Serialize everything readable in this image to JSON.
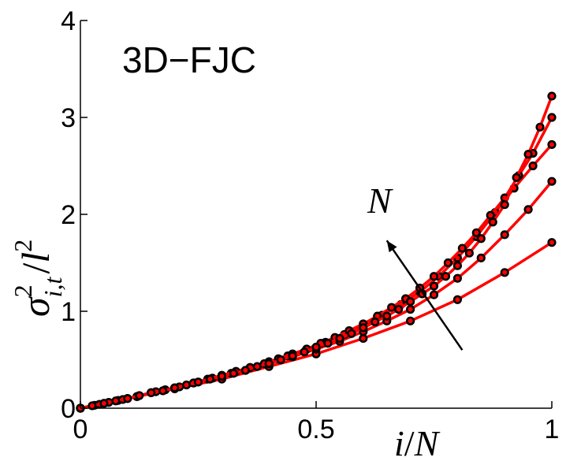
{
  "chart_data": {
    "type": "line",
    "title": "3D−FJC",
    "xlabel": {
      "numerator": "i",
      "slash": "/",
      "denominator": "N"
    },
    "ylabel": {
      "base": "σ",
      "sup": "2",
      "sub": "i,t",
      "slash": "/",
      "l": "l",
      "lsup": "2"
    },
    "annotation": "N",
    "xlim": [
      0,
      1
    ],
    "ylim": [
      0,
      4
    ],
    "xticks": [
      0,
      0.5,
      1
    ],
    "xtick_labels": [
      "0",
      "0.5",
      "1"
    ],
    "yticks": [
      0,
      1,
      2,
      3,
      4
    ],
    "ytick_labels": [
      "0",
      "1",
      "2",
      "3",
      "4"
    ],
    "line_color": "#ff0000",
    "marker_color": "#000000",
    "grid": false,
    "arrow": {
      "from": [
        0.81,
        0.6
      ],
      "to": [
        0.65,
        1.73
      ]
    },
    "series": [
      {
        "x": [
          0,
          0.1,
          0.2,
          0.3,
          0.4,
          0.5,
          0.6,
          0.7,
          0.8,
          0.9,
          1.0
        ],
        "y": [
          0,
          0.1,
          0.2,
          0.3,
          0.43,
          0.56,
          0.72,
          0.9,
          1.12,
          1.4,
          1.71
        ]
      },
      {
        "x": [
          0,
          0.05,
          0.1,
          0.15,
          0.2,
          0.25,
          0.3,
          0.35,
          0.4,
          0.45,
          0.5,
          0.55,
          0.6,
          0.65,
          0.7,
          0.75,
          0.8,
          0.85,
          0.9,
          0.95,
          1.0
        ],
        "y": [
          0,
          0.05,
          0.1,
          0.16,
          0.21,
          0.27,
          0.33,
          0.39,
          0.46,
          0.53,
          0.61,
          0.69,
          0.79,
          0.9,
          1.02,
          1.17,
          1.34,
          1.55,
          1.79,
          2.05,
          2.34
        ]
      },
      {
        "x": [
          0,
          0.04,
          0.08,
          0.12,
          0.16,
          0.2,
          0.24,
          0.28,
          0.32,
          0.36,
          0.4,
          0.44,
          0.48,
          0.52,
          0.56,
          0.6,
          0.64,
          0.68,
          0.72,
          0.76,
          0.8,
          0.84,
          0.88,
          0.92,
          0.96,
          1.0
        ],
        "y": [
          0,
          0.04,
          0.08,
          0.12,
          0.17,
          0.21,
          0.26,
          0.31,
          0.36,
          0.42,
          0.48,
          0.54,
          0.61,
          0.68,
          0.76,
          0.85,
          0.96,
          1.07,
          1.2,
          1.36,
          1.55,
          1.77,
          2.02,
          2.27,
          2.5,
          2.72
        ]
      },
      {
        "x": [
          0,
          0.03,
          0.06,
          0.09,
          0.12,
          0.15,
          0.18,
          0.21,
          0.24,
          0.27,
          0.3,
          0.33,
          0.36,
          0.39,
          0.42,
          0.45,
          0.48,
          0.51,
          0.54,
          0.57,
          0.6,
          0.63,
          0.66,
          0.69,
          0.72,
          0.75,
          0.78,
          0.81,
          0.84,
          0.87,
          0.9,
          0.93,
          0.96,
          1.0
        ],
        "y": [
          0,
          0.03,
          0.06,
          0.09,
          0.12,
          0.16,
          0.19,
          0.22,
          0.26,
          0.3,
          0.34,
          0.38,
          0.42,
          0.46,
          0.51,
          0.56,
          0.61,
          0.67,
          0.73,
          0.8,
          0.87,
          0.95,
          1.04,
          1.13,
          1.24,
          1.36,
          1.5,
          1.65,
          1.81,
          1.99,
          2.17,
          2.4,
          2.63,
          3.0
        ]
      },
      {
        "x": [
          0,
          0.025,
          0.05,
          0.075,
          0.1,
          0.125,
          0.15,
          0.175,
          0.2,
          0.225,
          0.25,
          0.275,
          0.3,
          0.325,
          0.35,
          0.375,
          0.4,
          0.425,
          0.45,
          0.475,
          0.5,
          0.525,
          0.55,
          0.575,
          0.6,
          0.625,
          0.65,
          0.675,
          0.7,
          0.725,
          0.75,
          0.775,
          0.8,
          0.825,
          0.85,
          0.875,
          0.9,
          0.925,
          0.95,
          0.975,
          1.0
        ],
        "y": [
          0,
          0.025,
          0.05,
          0.075,
          0.1,
          0.13,
          0.16,
          0.18,
          0.21,
          0.24,
          0.27,
          0.3,
          0.33,
          0.36,
          0.39,
          0.43,
          0.46,
          0.5,
          0.54,
          0.58,
          0.63,
          0.67,
          0.72,
          0.77,
          0.83,
          0.89,
          0.95,
          1.02,
          1.1,
          1.18,
          1.26,
          1.36,
          1.47,
          1.6,
          1.75,
          1.92,
          2.1,
          2.38,
          2.62,
          2.9,
          3.22
        ]
      }
    ]
  }
}
